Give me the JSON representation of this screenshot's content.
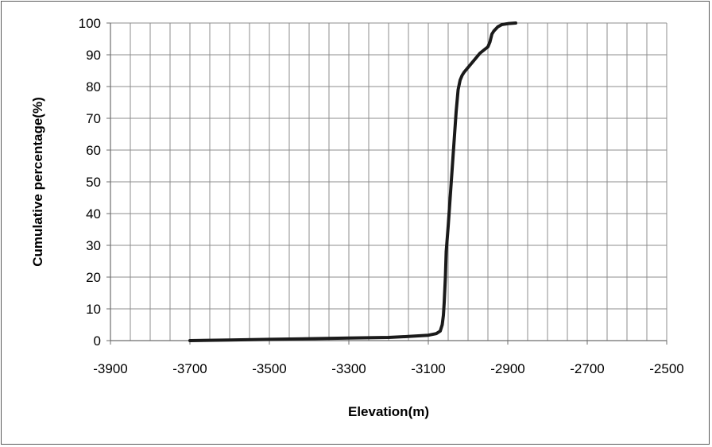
{
  "chart_data": {
    "type": "line",
    "title": "",
    "xlabel": "Elevation(m)",
    "ylabel": "Cumulative percentage(%)",
    "xlim": [
      -3900,
      -2500
    ],
    "ylim": [
      0,
      100
    ],
    "x_ticks": [
      -3900,
      -3700,
      -3500,
      -3300,
      -3100,
      -2900,
      -2700,
      -2500
    ],
    "y_ticks": [
      0,
      10,
      20,
      30,
      40,
      50,
      60,
      70,
      80,
      90,
      100
    ],
    "grid": true,
    "legend": "none",
    "line_color": "#1a1a1a",
    "series": [
      {
        "x": [
          -3700,
          -3600,
          -3500,
          -3400,
          -3300,
          -3200,
          -3150,
          -3100,
          -3080,
          -3070,
          -3065,
          -3062,
          -3060,
          -3057,
          -3055,
          -3050,
          -3045,
          -3040,
          -3035,
          -3030,
          -3025,
          -3020,
          -3015,
          -3010,
          -3000,
          -2990,
          -2980,
          -2970,
          -2960,
          -2950,
          -2945,
          -2940,
          -2935,
          -2925,
          -2915,
          -2900,
          -2880
        ],
        "y": [
          0,
          0.2,
          0.4,
          0.6,
          0.8,
          1.0,
          1.3,
          1.7,
          2.2,
          3.0,
          5.0,
          8.0,
          12.0,
          20.0,
          28.0,
          36.0,
          45.0,
          54.0,
          63.0,
          72.0,
          79.0,
          82.0,
          83.5,
          84.5,
          86.0,
          87.5,
          89.0,
          90.5,
          91.5,
          92.5,
          94.0,
          96.5,
          97.5,
          98.8,
          99.5,
          99.8,
          100
        ]
      }
    ]
  }
}
